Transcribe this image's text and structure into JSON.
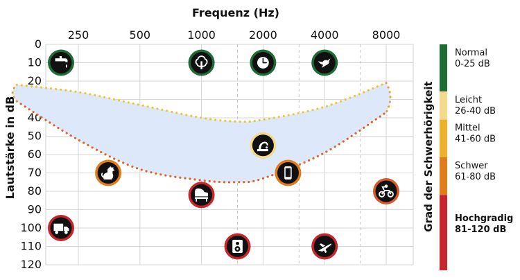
{
  "chart_data": {
    "type": "scatter",
    "title": "",
    "xlabel": "Frequenz  (Hz)",
    "ylabel": "Lautstärke in dB",
    "x_ticks": [
      "250",
      "500",
      "1000",
      "2000",
      "4000",
      "8000"
    ],
    "x_dashed_after": [
      "1000",
      "2000",
      "4000"
    ],
    "y_ticks": [
      0,
      10,
      20,
      30,
      40,
      50,
      60,
      70,
      80,
      90,
      100,
      110,
      120
    ],
    "ylim": [
      0,
      120
    ],
    "y_inverted": true,
    "grid": true,
    "speech_banana": {
      "upper": [
        [
          125,
          22
        ],
        [
          250,
          26
        ],
        [
          500,
          33
        ],
        [
          1000,
          40
        ],
        [
          1500,
          42
        ],
        [
          2000,
          41
        ],
        [
          4000,
          34
        ],
        [
          8000,
          21
        ]
      ],
      "lower": [
        [
          125,
          31
        ],
        [
          250,
          52
        ],
        [
          500,
          68
        ],
        [
          1000,
          74
        ],
        [
          1500,
          75
        ],
        [
          2000,
          73
        ],
        [
          4000,
          59
        ],
        [
          8000,
          37
        ]
      ],
      "fill_color": "#dde8fa",
      "upper_color": "#f0c43a",
      "lower_color": "#d9662a"
    },
    "points": [
      {
        "icon": "faucet-icon",
        "x": 125,
        "y": 10,
        "ring": "#1e6b35"
      },
      {
        "icon": "tree-icon",
        "x": 1000,
        "y": 10,
        "ring": "#1e6b35"
      },
      {
        "icon": "clock-icon",
        "x": 2000,
        "y": 10,
        "ring": "#1e6b35"
      },
      {
        "icon": "bird-icon",
        "x": 4000,
        "y": 10,
        "ring": "#1e6b35"
      },
      {
        "icon": "faucet-dripping-icon",
        "x": 2000,
        "y": 55,
        "ring": "#f5d98c"
      },
      {
        "icon": "dog-icon",
        "x": 350,
        "y": 70,
        "ring": "#e07c1a"
      },
      {
        "icon": "phone-icon",
        "x": 2650,
        "y": 70,
        "ring": "#e07c1a"
      },
      {
        "icon": "motorcycle-icon",
        "x": 8000,
        "y": 80,
        "ring": "#d55b2a"
      },
      {
        "icon": "piano-icon",
        "x": 1000,
        "y": 82,
        "ring": "#c9252c"
      },
      {
        "icon": "truck-icon",
        "x": 125,
        "y": 100,
        "ring": "#c9252c"
      },
      {
        "icon": "speaker-icon",
        "x": 1500,
        "y": 110,
        "ring": "#c9252c"
      },
      {
        "icon": "airplane-icon",
        "x": 4000,
        "y": 110,
        "ring": "#c9252c"
      }
    ]
  },
  "legend": {
    "title": "Grad der Schwerhörigkeit",
    "items": [
      {
        "name": "Normal",
        "range": "0-25 dB",
        "color": "#1e6b35",
        "from": 0,
        "to": 25,
        "bold": false
      },
      {
        "name": "Leicht",
        "range": "26-40 dB",
        "color": "#f5d98c",
        "from": 25,
        "to": 40,
        "bold": false
      },
      {
        "name": "Mittel",
        "range": "41-60 dB",
        "color": "#ecb22c",
        "from": 40,
        "to": 60,
        "bold": false
      },
      {
        "name": "Schwer",
        "range": "61-80 dB",
        "color": "#e07c1a",
        "from": 60,
        "to": 80,
        "bold": false
      },
      {
        "name": "Hochgradig",
        "range": "81-120 dB",
        "color": "#c9252c",
        "from": 80,
        "to": 120,
        "bold": true
      }
    ]
  }
}
